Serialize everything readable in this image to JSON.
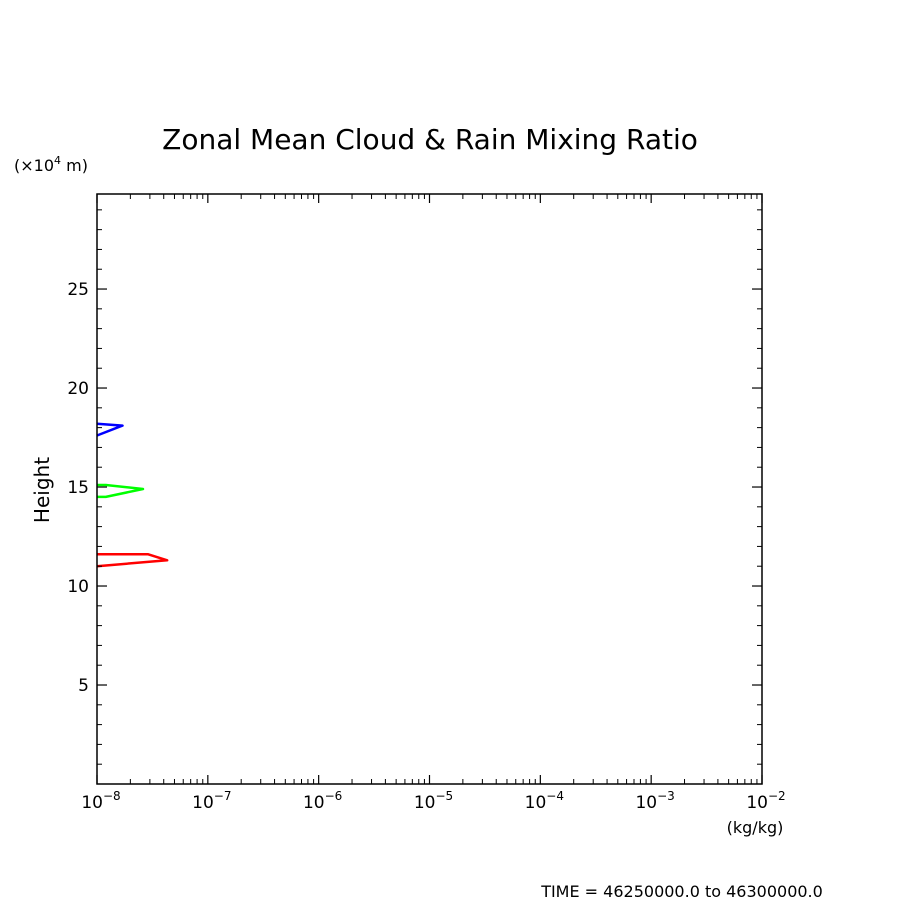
{
  "chart_data": {
    "type": "line",
    "title": "Zonal Mean Cloud & Rain Mixing Ratio",
    "xlabel": "(kg/kg)",
    "ylabel": "Height",
    "yunit_base": "(×10",
    "yunit_exp": "4",
    "yunit_tail": " m)",
    "x_scale": "log",
    "xlim": [
      1e-08,
      0.01
    ],
    "ylim": [
      0,
      29.8
    ],
    "x_ticks": [
      {
        "value": 1e-08,
        "base": "10",
        "exp": "−8"
      },
      {
        "value": 1e-07,
        "base": "10",
        "exp": "−7"
      },
      {
        "value": 1e-06,
        "base": "10",
        "exp": "−6"
      },
      {
        "value": 1e-05,
        "base": "10",
        "exp": "−5"
      },
      {
        "value": 0.0001,
        "base": "10",
        "exp": "−4"
      },
      {
        "value": 0.001,
        "base": "10",
        "exp": "−3"
      },
      {
        "value": 0.01,
        "base": "10",
        "exp": "−2"
      }
    ],
    "y_ticks": [
      5,
      10,
      15,
      20,
      25
    ],
    "grid": false,
    "series": [
      {
        "color": "#ff0000",
        "x": [
          1e-08,
          4.3e-08,
          2.9e-08,
          1e-08
        ],
        "y": [
          11.0,
          11.3,
          11.6,
          11.6
        ]
      },
      {
        "color": "#00ff00",
        "x": [
          1e-08,
          1.2e-08,
          2.6e-08,
          1.2e-08,
          1e-08
        ],
        "y": [
          14.5,
          14.5,
          14.9,
          15.1,
          15.1
        ]
      },
      {
        "color": "#0000ff",
        "x": [
          1e-08,
          1.7e-08,
          1e-08
        ],
        "y": [
          17.6,
          18.1,
          18.2
        ]
      }
    ],
    "footer": "TIME = 46250000.0 to 46300000.0"
  }
}
